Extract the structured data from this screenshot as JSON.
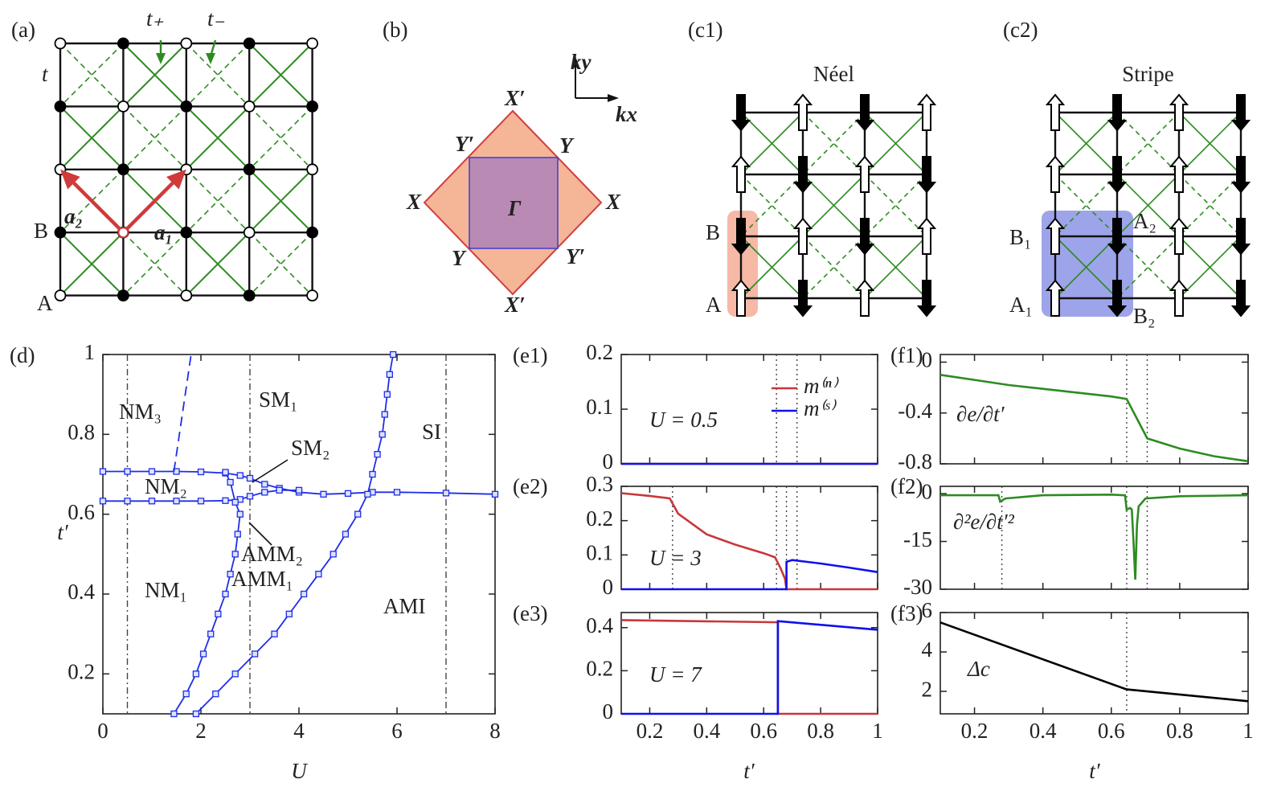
{
  "diagrams": {
    "a": {
      "label": "(a)",
      "texts": [
        "t₊",
        "t₋",
        "t",
        "a₂",
        "a₁",
        "B",
        "A"
      ]
    },
    "b": {
      "label": "(b)",
      "texts": [
        "X′",
        "Y′",
        "Y",
        "X",
        "X",
        "Γ",
        "Y",
        "Y′",
        "X′",
        "ky",
        "kx"
      ]
    },
    "c1": {
      "label": "(c1)",
      "title": "Néel",
      "texts": [
        "B",
        "A"
      ]
    },
    "c2": {
      "label": "(c2)",
      "title": "Stripe",
      "texts": [
        "B₁",
        "A₂",
        "A₁",
        "B₂"
      ]
    }
  },
  "chart_data": [
    {
      "label": "(d)",
      "type": "line",
      "xlabel": "U",
      "ylabel": "t′",
      "xlim": [
        0,
        8
      ],
      "ylim": [
        0.1,
        1
      ],
      "xticks": [
        0,
        2,
        4,
        6,
        8
      ],
      "yticks": [
        0.2,
        0.4,
        0.6,
        0.8,
        1
      ],
      "vlines": [
        0.5,
        3,
        7
      ],
      "vline_style": "dashdot",
      "annotations": [
        "NM₃",
        "SM₁",
        "SI",
        "NM₂",
        "SM₂",
        "AMM₂",
        "NM₁",
        "AMM₁",
        "AMI"
      ],
      "series": [
        {
          "color": "#1f2ee6",
          "marker": "square",
          "x": [
            0,
            0.5,
            1,
            1.5,
            2,
            2.5,
            2.8,
            3,
            3.3,
            3.6,
            4,
            4.5,
            5,
            5.5,
            6,
            7,
            8
          ],
          "values": [
            0.707,
            0.707,
            0.707,
            0.707,
            0.706,
            0.703,
            0.697,
            0.69,
            0.675,
            0.665,
            0.655,
            0.65,
            0.652,
            0.655,
            0.655,
            0.653,
            0.65
          ]
        },
        {
          "color": "#1f2ee6",
          "marker": "square",
          "x": [
            0,
            0.5,
            1,
            1.5,
            2,
            2.5,
            2.8,
            3,
            3.3,
            3.6,
            4
          ],
          "values": [
            0.633,
            0.633,
            0.633,
            0.633,
            0.633,
            0.634,
            0.637,
            0.645,
            0.655,
            0.66,
            0.66
          ]
        },
        {
          "color": "#1f2ee6",
          "marker": "square",
          "x": [
            1.45,
            1.7,
            1.9,
            2.05,
            2.2,
            2.35,
            2.5,
            2.6,
            2.7,
            2.75,
            2.8,
            2.7,
            2.6,
            2.5
          ],
          "values": [
            0.1,
            0.15,
            0.2,
            0.25,
            0.3,
            0.35,
            0.4,
            0.45,
            0.5,
            0.55,
            0.6,
            0.63,
            0.68,
            0.705
          ]
        },
        {
          "color": "#1f2ee6",
          "marker": "square",
          "x": [
            1.9,
            2.3,
            2.7,
            3.1,
            3.5,
            3.8,
            4.1,
            4.4,
            4.7,
            4.95,
            5.2,
            5.4,
            5.5,
            5.6,
            5.7,
            5.75,
            5.8,
            5.85,
            5.92
          ],
          "values": [
            0.1,
            0.15,
            0.2,
            0.25,
            0.3,
            0.35,
            0.4,
            0.45,
            0.5,
            0.55,
            0.6,
            0.65,
            0.7,
            0.75,
            0.8,
            0.85,
            0.9,
            0.95,
            1
          ]
        },
        {
          "color": "#1f2ee6",
          "style": "dashed",
          "x": [
            1.45,
            1.8
          ],
          "values": [
            0.707,
            1
          ]
        }
      ]
    },
    {
      "label": "(e1)",
      "type": "line",
      "xlim": [
        0.1,
        1
      ],
      "ylim": [
        0,
        0.2
      ],
      "xticks": [
        0.2,
        0.4,
        0.6,
        0.8,
        1
      ],
      "show_xtick_labels": false,
      "yticks": [
        0,
        0.1,
        0.2
      ],
      "vlines": [
        0.645,
        0.717
      ],
      "vline_style": "dotted",
      "legend": "upper right",
      "annotations": [
        "U = 0.5"
      ],
      "series": [
        {
          "name": "m⁽ⁿ⁾",
          "color": "#c8373a",
          "x": [
            0.1,
            1
          ],
          "values": [
            0,
            0
          ]
        },
        {
          "name": "m⁽ˢ⁾",
          "color": "#1010ee",
          "x": [
            0.1,
            1
          ],
          "values": [
            0,
            0
          ]
        }
      ]
    },
    {
      "label": "(e2)",
      "type": "line",
      "xlim": [
        0.1,
        1
      ],
      "ylim": [
        0,
        0.3
      ],
      "xticks": [
        0.2,
        0.4,
        0.6,
        0.8,
        1
      ],
      "show_xtick_labels": false,
      "yticks": [
        0,
        0.1,
        0.2,
        0.3
      ],
      "vlines": [
        0.28,
        0.645,
        0.68,
        0.717
      ],
      "vline_style": "dotted",
      "annotations": [
        "U = 3"
      ],
      "series": [
        {
          "color": "#c8373a",
          "x": [
            0.1,
            0.2,
            0.27,
            0.3,
            0.4,
            0.5,
            0.6,
            0.64,
            0.66,
            0.675,
            0.68,
            0.68,
            0.7,
            0.8,
            0.9,
            1
          ],
          "values": [
            0.28,
            0.272,
            0.265,
            0.22,
            0.16,
            0.13,
            0.105,
            0.093,
            0.06,
            0.03,
            0,
            0,
            0,
            0,
            0,
            0
          ]
        },
        {
          "color": "#1010ee",
          "x": [
            0.1,
            0.2,
            0.27,
            0.3,
            0.4,
            0.5,
            0.6,
            0.64,
            0.66,
            0.675,
            0.68,
            0.68,
            0.7,
            0.8,
            0.9,
            1
          ],
          "values": [
            0,
            0,
            0,
            0,
            0,
            0,
            0,
            0,
            0,
            0,
            0,
            0.08,
            0.085,
            0.075,
            0.063,
            0.05
          ]
        }
      ]
    },
    {
      "label": "(e3)",
      "type": "line",
      "xlabel": "t′",
      "xlim": [
        0.1,
        1
      ],
      "ylim": [
        0,
        0.47
      ],
      "xticks": [
        0.2,
        0.4,
        0.6,
        0.8,
        1
      ],
      "yticks": [
        0,
        0.2,
        0.4
      ],
      "annotations": [
        "U = 7"
      ],
      "series": [
        {
          "color": "#c8373a",
          "x": [
            0.1,
            0.65,
            0.65,
            1
          ],
          "values": [
            0.435,
            0.425,
            0,
            0
          ]
        },
        {
          "color": "#1010ee",
          "x": [
            0.1,
            0.65,
            0.65,
            1
          ],
          "values": [
            0,
            0,
            0.43,
            0.39
          ]
        }
      ]
    },
    {
      "label": "(f1)",
      "type": "line",
      "xlim": [
        0.1,
        1
      ],
      "ylim": [
        -0.8,
        0.06
      ],
      "xticks": [
        0.2,
        0.4,
        0.6,
        0.8,
        1
      ],
      "show_xtick_labels": false,
      "yticks": [
        0,
        -0.4,
        -0.8
      ],
      "vlines": [
        0.645,
        0.705
      ],
      "vline_style": "dotted",
      "annotations": [
        "∂e/∂t′"
      ],
      "series": [
        {
          "color": "#2e8b22",
          "x": [
            0.1,
            0.2,
            0.3,
            0.4,
            0.5,
            0.6,
            0.645,
            0.705,
            0.8,
            0.9,
            1
          ],
          "values": [
            -0.1,
            -0.14,
            -0.18,
            -0.21,
            -0.24,
            -0.27,
            -0.29,
            -0.6,
            -0.68,
            -0.74,
            -0.78
          ]
        }
      ]
    },
    {
      "label": "(f2)",
      "type": "line",
      "xlim": [
        0.1,
        1
      ],
      "ylim": [
        -30,
        2.3
      ],
      "xticks": [
        0.2,
        0.4,
        0.6,
        0.8,
        1
      ],
      "show_xtick_labels": false,
      "yticks": [
        0,
        -15,
        -30
      ],
      "vlines": [
        0.28,
        0.645,
        0.705
      ],
      "vline_style": "dotted",
      "annotations": [
        "∂²e/∂t′²"
      ],
      "series": [
        {
          "color": "#2e8b22",
          "x": [
            0.1,
            0.27,
            0.275,
            0.29,
            0.4,
            0.6,
            0.64,
            0.645,
            0.655,
            0.66,
            0.665,
            0.67,
            0.675,
            0.68,
            0.7,
            0.8,
            1
          ],
          "values": [
            -0.5,
            -0.5,
            -2.5,
            -1.5,
            -0.5,
            -0.3,
            -0.5,
            -5,
            -4.5,
            -5,
            -15,
            -27,
            -10,
            -4,
            -1.5,
            -0.8,
            -0.5
          ]
        }
      ]
    },
    {
      "label": "(f3)",
      "type": "line",
      "xlabel": "t′",
      "xlim": [
        0.1,
        1
      ],
      "ylim": [
        0.86,
        6
      ],
      "xticks": [
        0.2,
        0.4,
        0.6,
        0.8,
        1
      ],
      "yticks": [
        2,
        4,
        6
      ],
      "vlines": [
        0.645
      ],
      "vline_style": "dotted",
      "annotations": [
        "Δc"
      ],
      "series": [
        {
          "color": "#000000",
          "x": [
            0.1,
            0.645,
            1
          ],
          "values": [
            5.5,
            2.1,
            1.5
          ]
        }
      ]
    }
  ]
}
